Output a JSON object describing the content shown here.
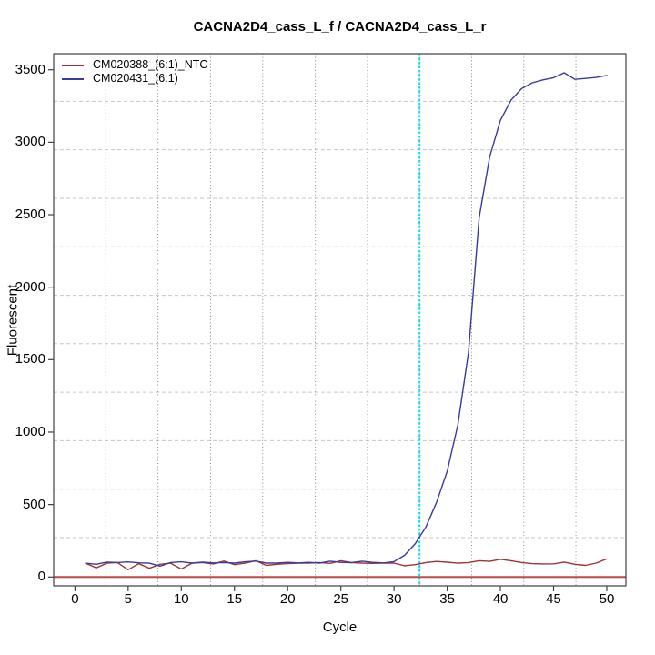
{
  "chart_data": {
    "type": "line",
    "title": "CACNA2D4_cass_L_f / CACNA2D4_cass_L_r",
    "xlabel": "Cycle",
    "ylabel": "Fluorescent",
    "xlim": [
      -2,
      51.8
    ],
    "ylim": [
      -61,
      3611
    ],
    "x_ticks": [
      0,
      5,
      10,
      15,
      20,
      25,
      30,
      35,
      40,
      45,
      50
    ],
    "y_ticks": [
      0,
      500,
      1000,
      1500,
      2000,
      2500,
      3000,
      3500
    ],
    "x": [
      1,
      2,
      3,
      4,
      5,
      6,
      7,
      8,
      9,
      10,
      11,
      12,
      13,
      14,
      15,
      16,
      17,
      18,
      19,
      20,
      21,
      22,
      23,
      24,
      25,
      26,
      27,
      28,
      29,
      30,
      31,
      32,
      33,
      34,
      35,
      36,
      37,
      38,
      39,
      40,
      41,
      42,
      43,
      44,
      45,
      46,
      47,
      48,
      49,
      50
    ],
    "series": [
      {
        "name": "CM020388_(6:1)_NTC",
        "color": "#9e3434",
        "values": [
          95,
          63,
          95,
          100,
          50,
          92,
          60,
          88,
          95,
          55,
          95,
          100,
          90,
          110,
          85,
          95,
          112,
          80,
          88,
          92,
          95,
          96,
          100,
          94,
          112,
          100,
          96,
          94,
          95,
          96,
          78,
          85,
          100,
          107,
          102,
          95,
          100,
          112,
          108,
          122,
          112,
          100,
          92,
          90,
          91,
          103,
          88,
          80,
          96,
          125
        ]
      },
      {
        "name": "CM020431_(6:1)",
        "color": "#3a3a9e",
        "values": [
          95,
          88,
          103,
          100,
          104,
          98,
          95,
          75,
          100,
          105,
          96,
          102,
          97,
          100,
          96,
          105,
          110,
          96,
          96,
          101,
          97,
          101,
          96,
          109,
          101,
          99,
          109,
          101,
          97,
          106,
          150,
          230,
          345,
          515,
          730,
          1050,
          1550,
          2480,
          2900,
          3150,
          3290,
          3370,
          3410,
          3430,
          3445,
          3479,
          3434,
          3440,
          3447,
          3461
        ]
      }
    ],
    "threshold_line": {
      "y": 0,
      "color": "#c04848"
    },
    "ct_line": {
      "x": 32.4,
      "color": "#00e4ef",
      "style": "dotted"
    },
    "grid": {
      "on": true,
      "x_values": [
        2.9,
        7.8,
        12.75,
        17.65,
        22.6,
        27.5,
        32.4,
        37.3,
        42.2,
        47.1
      ],
      "y_values": [
        272,
        606,
        941,
        1275,
        1610,
        1944,
        2279,
        2613,
        2948,
        3282
      ],
      "x_color": "#8a8a8a",
      "y_color": "#c6c6c6"
    },
    "legend": {
      "position": "top-left",
      "entries": [
        "CM020388_(6:1)_NTC",
        "CM020431_(6:1)"
      ]
    },
    "axis_color": "#404040"
  }
}
